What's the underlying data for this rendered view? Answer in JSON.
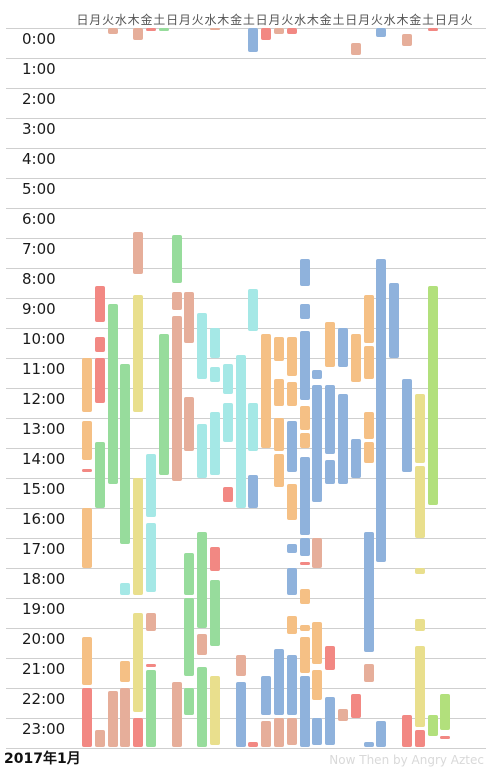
{
  "weekday_headers": [
    "日",
    "月",
    "火",
    "水",
    "木",
    "金",
    "土",
    "日",
    "月",
    "火",
    "水",
    "木",
    "金",
    "土",
    "日",
    "月",
    "火",
    "水",
    "木",
    "金",
    "土",
    "日",
    "月",
    "火",
    "水",
    "木",
    "金",
    "土",
    "日",
    "月",
    "火"
  ],
  "hour_labels": [
    "0:00",
    "1:00",
    "2:00",
    "3:00",
    "4:00",
    "5:00",
    "6:00",
    "7:00",
    "8:00",
    "9:00",
    "10:00",
    "11:00",
    "12:00",
    "13:00",
    "14:00",
    "15:00",
    "16:00",
    "17:00",
    "18:00",
    "19:00",
    "20:00",
    "21:00",
    "22:00",
    "23:00"
  ],
  "footer": {
    "month": "2017年1月",
    "credit": "Now Then by Angry Aztec"
  },
  "colors": {
    "orange": "#f5c085",
    "red": "#f28883",
    "green": "#97dc9c",
    "yellow": "#e9df8d",
    "cyan": "#a5e8e6",
    "blue": "#8fb2dc",
    "brown": "#e6ae9a",
    "lime": "#b2e07c"
  },
  "events": [
    {
      "day": 0,
      "start": 11.0,
      "end": 12.8,
      "color": "orange"
    },
    {
      "day": 0,
      "start": 13.1,
      "end": 14.4,
      "color": "orange"
    },
    {
      "day": 0,
      "start": 14.7,
      "end": 14.8,
      "color": "red"
    },
    {
      "day": 0,
      "start": 16.0,
      "end": 18.0,
      "color": "orange"
    },
    {
      "day": 0,
      "start": 20.3,
      "end": 21.9,
      "color": "orange"
    },
    {
      "day": 0,
      "start": 22.0,
      "end": 23.95,
      "color": "red"
    },
    {
      "day": 1,
      "start": 8.6,
      "end": 9.8,
      "color": "red"
    },
    {
      "day": 1,
      "start": 10.3,
      "end": 10.8,
      "color": "red"
    },
    {
      "day": 1,
      "start": 11.0,
      "end": 12.5,
      "color": "red"
    },
    {
      "day": 1,
      "start": 13.8,
      "end": 16.0,
      "color": "green"
    },
    {
      "day": 1,
      "start": 23.4,
      "end": 23.95,
      "color": "brown"
    },
    {
      "day": 2,
      "start": 0.0,
      "end": 0.2,
      "color": "brown"
    },
    {
      "day": 2,
      "start": 9.2,
      "end": 15.2,
      "color": "green"
    },
    {
      "day": 2,
      "start": 22.1,
      "end": 23.95,
      "color": "brown"
    },
    {
      "day": 3,
      "start": 11.2,
      "end": 17.2,
      "color": "green"
    },
    {
      "day": 3,
      "start": 18.5,
      "end": 18.9,
      "color": "cyan"
    },
    {
      "day": 3,
      "start": 21.1,
      "end": 21.8,
      "color": "orange"
    },
    {
      "day": 3,
      "start": 22.0,
      "end": 23.95,
      "color": "brown"
    },
    {
      "day": 4,
      "start": 0.0,
      "end": 0.4,
      "color": "brown"
    },
    {
      "day": 4,
      "start": 6.8,
      "end": 8.2,
      "color": "brown"
    },
    {
      "day": 4,
      "start": 8.9,
      "end": 12.8,
      "color": "yellow"
    },
    {
      "day": 4,
      "start": 15.0,
      "end": 18.9,
      "color": "yellow"
    },
    {
      "day": 4,
      "start": 19.5,
      "end": 22.8,
      "color": "yellow"
    },
    {
      "day": 4,
      "start": 23.0,
      "end": 23.95,
      "color": "red"
    },
    {
      "day": 5,
      "start": 0.0,
      "end": 0.1,
      "color": "red"
    },
    {
      "day": 5,
      "start": 14.2,
      "end": 16.3,
      "color": "cyan"
    },
    {
      "day": 5,
      "start": 16.5,
      "end": 18.8,
      "color": "cyan"
    },
    {
      "day": 5,
      "start": 19.5,
      "end": 20.1,
      "color": "brown"
    },
    {
      "day": 5,
      "start": 21.2,
      "end": 21.3,
      "color": "red"
    },
    {
      "day": 5,
      "start": 21.4,
      "end": 23.95,
      "color": "green"
    },
    {
      "day": 6,
      "start": 0.0,
      "end": 0.1,
      "color": "green"
    },
    {
      "day": 6,
      "start": 10.2,
      "end": 14.9,
      "color": "green"
    },
    {
      "day": 7,
      "start": 6.9,
      "end": 8.5,
      "color": "green"
    },
    {
      "day": 7,
      "start": 8.8,
      "end": 9.4,
      "color": "brown"
    },
    {
      "day": 7,
      "start": 9.6,
      "end": 15.1,
      "color": "brown"
    },
    {
      "day": 7,
      "start": 21.8,
      "end": 23.95,
      "color": "brown"
    },
    {
      "day": 8,
      "start": 8.8,
      "end": 10.5,
      "color": "brown"
    },
    {
      "day": 8,
      "start": 12.3,
      "end": 14.1,
      "color": "brown"
    },
    {
      "day": 8,
      "start": 17.5,
      "end": 18.9,
      "color": "green"
    },
    {
      "day": 8,
      "start": 19.0,
      "end": 21.6,
      "color": "green"
    },
    {
      "day": 8,
      "start": 22.0,
      "end": 22.9,
      "color": "green"
    },
    {
      "day": 9,
      "start": 9.5,
      "end": 11.7,
      "color": "cyan"
    },
    {
      "day": 9,
      "start": 13.2,
      "end": 15.0,
      "color": "cyan"
    },
    {
      "day": 9,
      "start": 16.8,
      "end": 20.0,
      "color": "green"
    },
    {
      "day": 9,
      "start": 20.2,
      "end": 20.9,
      "color": "brown"
    },
    {
      "day": 9,
      "start": 21.3,
      "end": 23.95,
      "color": "green"
    },
    {
      "day": 10,
      "start": 0.0,
      "end": 0.05,
      "color": "brown"
    },
    {
      "day": 10,
      "start": 10.0,
      "end": 11.0,
      "color": "cyan"
    },
    {
      "day": 10,
      "start": 11.3,
      "end": 11.8,
      "color": "cyan"
    },
    {
      "day": 10,
      "start": 12.8,
      "end": 14.9,
      "color": "cyan"
    },
    {
      "day": 10,
      "start": 17.3,
      "end": 18.1,
      "color": "red"
    },
    {
      "day": 10,
      "start": 18.4,
      "end": 20.6,
      "color": "green"
    },
    {
      "day": 10,
      "start": 21.6,
      "end": 23.9,
      "color": "yellow"
    },
    {
      "day": 11,
      "start": 11.2,
      "end": 12.2,
      "color": "cyan"
    },
    {
      "day": 11,
      "start": 12.5,
      "end": 13.8,
      "color": "cyan"
    },
    {
      "day": 11,
      "start": 15.3,
      "end": 15.8,
      "color": "red"
    },
    {
      "day": 12,
      "start": 10.9,
      "end": 16.0,
      "color": "cyan"
    },
    {
      "day": 12,
      "start": 20.9,
      "end": 21.6,
      "color": "brown"
    },
    {
      "day": 12,
      "start": 21.8,
      "end": 23.95,
      "color": "blue"
    },
    {
      "day": 13,
      "start": 0.0,
      "end": 0.8,
      "color": "blue"
    },
    {
      "day": 13,
      "start": 8.7,
      "end": 10.1,
      "color": "cyan"
    },
    {
      "day": 13,
      "start": 12.5,
      "end": 14.1,
      "color": "cyan"
    },
    {
      "day": 13,
      "start": 14.9,
      "end": 16.0,
      "color": "blue"
    },
    {
      "day": 13,
      "start": 23.8,
      "end": 23.95,
      "color": "red"
    },
    {
      "day": 14,
      "start": 0.0,
      "end": 0.4,
      "color": "red"
    },
    {
      "day": 14,
      "start": 10.2,
      "end": 14.0,
      "color": "orange"
    },
    {
      "day": 14,
      "start": 21.6,
      "end": 22.9,
      "color": "blue"
    },
    {
      "day": 14,
      "start": 23.1,
      "end": 23.95,
      "color": "brown"
    },
    {
      "day": 15,
      "start": 0.0,
      "end": 0.2,
      "color": "brown"
    },
    {
      "day": 15,
      "start": 10.3,
      "end": 11.1,
      "color": "orange"
    },
    {
      "day": 15,
      "start": 11.7,
      "end": 12.6,
      "color": "orange"
    },
    {
      "day": 15,
      "start": 13.0,
      "end": 14.1,
      "color": "orange"
    },
    {
      "day": 15,
      "start": 14.2,
      "end": 15.3,
      "color": "orange"
    },
    {
      "day": 15,
      "start": 20.7,
      "end": 22.9,
      "color": "blue"
    },
    {
      "day": 15,
      "start": 23.0,
      "end": 23.95,
      "color": "brown"
    },
    {
      "day": 16,
      "start": 0.0,
      "end": 0.2,
      "color": "red"
    },
    {
      "day": 16,
      "start": 10.3,
      "end": 11.6,
      "color": "orange"
    },
    {
      "day": 16,
      "start": 11.8,
      "end": 12.6,
      "color": "orange"
    },
    {
      "day": 16,
      "start": 13.1,
      "end": 14.8,
      "color": "blue"
    },
    {
      "day": 16,
      "start": 15.2,
      "end": 16.4,
      "color": "orange"
    },
    {
      "day": 16,
      "start": 17.2,
      "end": 17.5,
      "color": "blue"
    },
    {
      "day": 16,
      "start": 18.0,
      "end": 18.9,
      "color": "blue"
    },
    {
      "day": 16,
      "start": 19.6,
      "end": 20.2,
      "color": "orange"
    },
    {
      "day": 16,
      "start": 20.9,
      "end": 22.9,
      "color": "blue"
    },
    {
      "day": 16,
      "start": 23.0,
      "end": 23.9,
      "color": "brown"
    },
    {
      "day": 17,
      "start": 7.7,
      "end": 8.6,
      "color": "blue"
    },
    {
      "day": 17,
      "start": 9.2,
      "end": 9.7,
      "color": "blue"
    },
    {
      "day": 17,
      "start": 10.1,
      "end": 12.4,
      "color": "blue"
    },
    {
      "day": 17,
      "start": 12.6,
      "end": 13.4,
      "color": "orange"
    },
    {
      "day": 17,
      "start": 13.5,
      "end": 14.0,
      "color": "orange"
    },
    {
      "day": 17,
      "start": 14.3,
      "end": 16.9,
      "color": "blue"
    },
    {
      "day": 17,
      "start": 17.0,
      "end": 17.6,
      "color": "blue"
    },
    {
      "day": 17,
      "start": 17.8,
      "end": 17.9,
      "color": "red"
    },
    {
      "day": 17,
      "start": 18.7,
      "end": 19.2,
      "color": "orange"
    },
    {
      "day": 17,
      "start": 19.9,
      "end": 20.1,
      "color": "orange"
    },
    {
      "day": 17,
      "start": 20.3,
      "end": 21.5,
      "color": "orange"
    },
    {
      "day": 17,
      "start": 21.6,
      "end": 23.95,
      "color": "blue"
    },
    {
      "day": 18,
      "start": 11.4,
      "end": 11.7,
      "color": "blue"
    },
    {
      "day": 18,
      "start": 11.9,
      "end": 15.8,
      "color": "blue"
    },
    {
      "day": 18,
      "start": 17.0,
      "end": 18.0,
      "color": "brown"
    },
    {
      "day": 18,
      "start": 19.8,
      "end": 21.2,
      "color": "orange"
    },
    {
      "day": 18,
      "start": 21.4,
      "end": 22.4,
      "color": "orange"
    },
    {
      "day": 18,
      "start": 23.0,
      "end": 23.9,
      "color": "blue"
    },
    {
      "day": 19,
      "start": 9.8,
      "end": 11.3,
      "color": "orange"
    },
    {
      "day": 19,
      "start": 11.9,
      "end": 14.2,
      "color": "blue"
    },
    {
      "day": 19,
      "start": 14.4,
      "end": 15.2,
      "color": "blue"
    },
    {
      "day": 19,
      "start": 20.6,
      "end": 21.4,
      "color": "red"
    },
    {
      "day": 19,
      "start": 22.3,
      "end": 23.9,
      "color": "blue"
    },
    {
      "day": 20,
      "start": 10.0,
      "end": 11.3,
      "color": "blue"
    },
    {
      "day": 20,
      "start": 12.2,
      "end": 15.2,
      "color": "blue"
    },
    {
      "day": 20,
      "start": 22.7,
      "end": 23.1,
      "color": "brown"
    },
    {
      "day": 21,
      "start": 0.5,
      "end": 0.9,
      "color": "brown"
    },
    {
      "day": 21,
      "start": 10.2,
      "end": 11.8,
      "color": "orange"
    },
    {
      "day": 21,
      "start": 13.7,
      "end": 15.0,
      "color": "blue"
    },
    {
      "day": 21,
      "start": 22.2,
      "end": 23.0,
      "color": "red"
    },
    {
      "day": 22,
      "start": 8.9,
      "end": 10.5,
      "color": "orange"
    },
    {
      "day": 22,
      "start": 10.6,
      "end": 11.7,
      "color": "orange"
    },
    {
      "day": 22,
      "start": 12.8,
      "end": 13.7,
      "color": "orange"
    },
    {
      "day": 22,
      "start": 13.8,
      "end": 14.5,
      "color": "orange"
    },
    {
      "day": 22,
      "start": 16.8,
      "end": 20.8,
      "color": "blue"
    },
    {
      "day": 22,
      "start": 21.2,
      "end": 21.8,
      "color": "brown"
    },
    {
      "day": 22,
      "start": 23.8,
      "end": 23.95,
      "color": "blue"
    },
    {
      "day": 23,
      "start": 0.0,
      "end": 0.3,
      "color": "blue"
    },
    {
      "day": 23,
      "start": 7.7,
      "end": 17.8,
      "color": "blue"
    },
    {
      "day": 23,
      "start": 23.1,
      "end": 23.95,
      "color": "blue"
    },
    {
      "day": 24,
      "start": 8.5,
      "end": 11.0,
      "color": "blue"
    },
    {
      "day": 25,
      "start": 0.2,
      "end": 0.6,
      "color": "brown"
    },
    {
      "day": 25,
      "start": 11.7,
      "end": 14.8,
      "color": "blue"
    },
    {
      "day": 25,
      "start": 22.9,
      "end": 23.95,
      "color": "red"
    },
    {
      "day": 26,
      "start": 12.2,
      "end": 14.5,
      "color": "yellow"
    },
    {
      "day": 26,
      "start": 14.6,
      "end": 17.0,
      "color": "yellow"
    },
    {
      "day": 26,
      "start": 18.0,
      "end": 18.2,
      "color": "yellow"
    },
    {
      "day": 26,
      "start": 19.7,
      "end": 20.1,
      "color": "yellow"
    },
    {
      "day": 26,
      "start": 20.6,
      "end": 23.3,
      "color": "yellow"
    },
    {
      "day": 26,
      "start": 23.4,
      "end": 23.95,
      "color": "red"
    },
    {
      "day": 27,
      "start": 0.0,
      "end": 0.1,
      "color": "red"
    },
    {
      "day": 27,
      "start": 8.6,
      "end": 15.9,
      "color": "lime"
    },
    {
      "day": 27,
      "start": 22.9,
      "end": 23.6,
      "color": "lime"
    },
    {
      "day": 28,
      "start": 22.2,
      "end": 23.4,
      "color": "lime"
    },
    {
      "day": 28,
      "start": 23.6,
      "end": 23.7,
      "color": "red"
    }
  ]
}
